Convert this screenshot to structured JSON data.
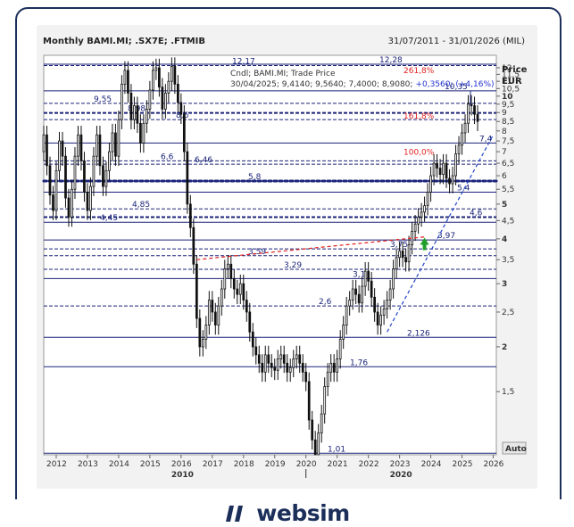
{
  "header": {
    "title": "Monthly BAMI.MI; .SX7E; .FTMIB",
    "date_range": "31/07/2011 - 31/01/2026 (MIL)"
  },
  "legend": {
    "line1": "Cndl; BAMI.MI; Trade Price",
    "line2_values": "30/04/2025; 9,4140; 9,5640; 7,4000; 8,9080;",
    "line2_change": "+0,3560; (+4,16%)"
  },
  "brand": {
    "name": "websim",
    "colors": {
      "navy": "#1c2f5a",
      "candle": "#111111",
      "level": "#1a2378",
      "fib": "#e02020",
      "trend": "#2244cc",
      "arrow": "#1f9e2a"
    }
  },
  "chart_data": {
    "type": "candlestick",
    "title": "Monthly BAMI.MI; .SX7E; .FTMIB",
    "ylabel_line1": "Price",
    "ylabel_line2": "EUR",
    "y_scale": "log",
    "ylim": [
      1.0,
      13.0
    ],
    "xlim": [
      2011.6,
      2026.1
    ],
    "grid": false,
    "y_ticks": [
      "1,5",
      "2",
      "2,5",
      "3",
      "3,5",
      "4",
      "4,5",
      "5",
      "5,5",
      "6",
      "6,5",
      "7",
      "7,5",
      "8",
      "8,5",
      "9",
      "9,5",
      "10",
      "10,5",
      "11",
      "11,5",
      "12"
    ],
    "y_ticks_bold": [
      "2",
      "3",
      "4",
      "5",
      "10"
    ],
    "x_ticks": [
      "2012",
      "2013",
      "2014",
      "2015",
      "2016",
      "2017",
      "2018",
      "2019",
      "2020",
      "2021",
      "2022",
      "2023",
      "2024",
      "2025",
      "2026"
    ],
    "x_secondary_labels": [
      {
        "year": 2016,
        "label": "2010"
      },
      {
        "year": 2023,
        "label": "2020"
      }
    ],
    "auto_label": "Auto",
    "levels": [
      {
        "value": 12.28,
        "label": "12,28",
        "style": "solid"
      },
      {
        "value": 12.17,
        "label": "12,17",
        "style": "dashed"
      },
      {
        "value": 10.35,
        "label": "10,35",
        "style": "solid"
      },
      {
        "value": 9.55,
        "label": "9,55",
        "style": "dashed"
      },
      {
        "value": 8.98,
        "label": "8,98",
        "style": "dashed-bold"
      },
      {
        "value": 8.6,
        "label": "8,6",
        "style": "dashed"
      },
      {
        "value": 7.4,
        "label": "7,4",
        "style": "solid"
      },
      {
        "value": 6.6,
        "label": "6,6",
        "style": "dashed"
      },
      {
        "value": 6.46,
        "label": "6,46",
        "style": "dashed"
      },
      {
        "value": 5.8,
        "label": "5,8",
        "style": "dotted-bold"
      },
      {
        "value": 5.4,
        "label": "5,4",
        "style": "solid"
      },
      {
        "value": 4.85,
        "label": "4,85",
        "style": "dashed"
      },
      {
        "value": 4.6,
        "label": "4,6",
        "style": "dashed-bold"
      },
      {
        "value": 4.45,
        "label": "4,45",
        "style": "solid"
      },
      {
        "value": 3.97,
        "label": "3,97",
        "style": "solid"
      },
      {
        "value": 3.75,
        "label": "3,75",
        "style": "dashed"
      },
      {
        "value": 3.59,
        "label": "3,59",
        "style": "dashed"
      },
      {
        "value": 3.29,
        "label": "3,29",
        "style": "dashed"
      },
      {
        "value": 3.1,
        "label": "3,1",
        "style": "solid"
      },
      {
        "value": 2.6,
        "label": "2,6",
        "style": "dashed"
      },
      {
        "value": 2.126,
        "label": "2,126",
        "style": "solid"
      },
      {
        "value": 1.76,
        "label": "1,76",
        "style": "solid"
      },
      {
        "value": 1.01,
        "label": "1,01",
        "style": "solid"
      }
    ],
    "fib_labels": [
      {
        "value": 11.4,
        "label": "261,8%"
      },
      {
        "value": 8.5,
        "label": "161,8%"
      },
      {
        "value": 6.75,
        "label": "100,0%"
      }
    ],
    "trendline": {
      "from": [
        2022.6,
        2.2
      ],
      "to": [
        2026.0,
        7.8
      ]
    },
    "red_line": {
      "from": [
        2016.5,
        3.5
      ],
      "to": [
        2023.8,
        4.05
      ]
    },
    "arrow": {
      "x": 2023.8,
      "y": 3.85
    },
    "series": [
      {
        "x": [
          2011.6,
          2011.7,
          2011.8,
          2011.9,
          2012.0,
          2012.1,
          2012.2,
          2012.3,
          2012.4,
          2012.5,
          2012.6,
          2012.7,
          2012.8,
          2012.9,
          2013.0,
          2013.1,
          2013.2,
          2013.3,
          2013.4,
          2013.5,
          2013.6,
          2013.7,
          2013.8,
          2013.9,
          2014.0,
          2014.1,
          2014.2,
          2014.3,
          2014.4,
          2014.5,
          2014.6,
          2014.7,
          2014.8,
          2014.9,
          2015.0,
          2015.1,
          2015.2,
          2015.3,
          2015.4,
          2015.5,
          2015.6,
          2015.7,
          2015.8,
          2015.9,
          2016.0,
          2016.1,
          2016.2,
          2016.3,
          2016.4,
          2016.5,
          2016.6,
          2016.7,
          2016.8,
          2016.9,
          2017.0,
          2017.1,
          2017.2,
          2017.3,
          2017.4,
          2017.5,
          2017.6,
          2017.7,
          2017.8,
          2017.9,
          2018.0,
          2018.1,
          2018.2,
          2018.3,
          2018.4,
          2018.5,
          2018.6,
          2018.7,
          2018.8,
          2018.9,
          2019.0,
          2019.1,
          2019.2,
          2019.3,
          2019.4,
          2019.5,
          2019.6,
          2019.7,
          2019.8,
          2019.9,
          2020.0,
          2020.1,
          2020.2,
          2020.3,
          2020.4,
          2020.5,
          2020.6,
          2020.7,
          2020.8,
          2020.9,
          2021.0,
          2021.1,
          2021.2,
          2021.3,
          2021.4,
          2021.5,
          2021.6,
          2021.7,
          2021.8,
          2021.9,
          2022.0,
          2022.1,
          2022.2,
          2022.3,
          2022.4,
          2022.5,
          2022.6,
          2022.7,
          2022.8,
          2022.9,
          2023.0,
          2023.1,
          2023.2,
          2023.3,
          2023.4,
          2023.5,
          2023.6,
          2023.7,
          2023.8,
          2023.9,
          2024.0,
          2024.1,
          2024.2,
          2024.3,
          2024.4,
          2024.5,
          2024.6,
          2024.7,
          2024.8,
          2024.9,
          2025.0,
          2025.1,
          2025.2,
          2025.3,
          2025.4,
          2025.5
        ],
        "close": [
          7.8,
          6.4,
          5.3,
          4.8,
          6.2,
          7.5,
          6.8,
          5.2,
          4.6,
          5.5,
          6.8,
          7.8,
          6.6,
          5.4,
          4.8,
          5.6,
          6.8,
          7.8,
          6.4,
          5.6,
          6.2,
          7.0,
          7.9,
          6.8,
          8.6,
          10.8,
          11.8,
          10.2,
          8.6,
          9.4,
          8.4,
          7.4,
          8.4,
          9.2,
          10.4,
          11.8,
          12.0,
          10.6,
          9.2,
          10.2,
          11.0,
          12.1,
          10.8,
          9.6,
          8.9,
          7.0,
          5.0,
          4.3,
          3.4,
          2.4,
          2.0,
          2.1,
          2.3,
          2.7,
          2.5,
          2.3,
          2.6,
          2.9,
          3.3,
          3.4,
          3.1,
          2.9,
          2.8,
          3.0,
          2.7,
          2.5,
          2.2,
          2.0,
          1.9,
          1.8,
          1.7,
          1.9,
          1.8,
          1.75,
          1.72,
          1.85,
          1.9,
          1.8,
          1.7,
          1.75,
          1.85,
          1.9,
          1.8,
          1.7,
          1.6,
          1.25,
          1.1,
          1.0,
          1.15,
          1.3,
          1.55,
          1.7,
          1.8,
          1.7,
          1.85,
          2.1,
          2.3,
          2.6,
          2.7,
          2.9,
          2.8,
          2.65,
          2.95,
          3.25,
          3.05,
          2.75,
          2.5,
          2.3,
          2.45,
          2.55,
          2.7,
          2.9,
          3.3,
          3.55,
          3.7,
          3.55,
          3.45,
          3.85,
          4.2,
          4.4,
          4.6,
          4.75,
          4.95,
          5.4,
          6.0,
          6.5,
          6.3,
          6.05,
          6.5,
          5.9,
          5.7,
          6.0,
          6.9,
          7.3,
          7.9,
          8.4,
          9.5,
          9.4,
          8.9,
          8.5
        ],
        "open": [
          7.0,
          7.8,
          6.4,
          5.3,
          4.8,
          6.2,
          7.5,
          6.8,
          5.2,
          4.6,
          5.5,
          6.8,
          7.8,
          6.6,
          5.4,
          4.8,
          5.6,
          6.8,
          7.8,
          6.4,
          5.6,
          6.2,
          7.0,
          7.9,
          6.8,
          8.6,
          10.8,
          11.8,
          10.2,
          8.6,
          9.4,
          8.4,
          7.4,
          8.4,
          9.2,
          10.4,
          11.8,
          12.0,
          10.6,
          9.2,
          10.2,
          11.0,
          12.1,
          10.8,
          9.6,
          8.9,
          7.0,
          5.0,
          4.3,
          3.4,
          2.4,
          2.0,
          2.1,
          2.3,
          2.7,
          2.5,
          2.3,
          2.6,
          2.9,
          3.3,
          3.4,
          3.1,
          2.9,
          2.8,
          3.0,
          2.7,
          2.5,
          2.2,
          2.0,
          1.9,
          1.8,
          1.7,
          1.9,
          1.8,
          1.75,
          1.72,
          1.85,
          1.9,
          1.8,
          1.7,
          1.75,
          1.85,
          1.9,
          1.8,
          1.7,
          1.6,
          1.25,
          1.1,
          1.0,
          1.15,
          1.3,
          1.55,
          1.7,
          1.8,
          1.7,
          1.85,
          2.1,
          2.3,
          2.6,
          2.7,
          2.9,
          2.8,
          2.65,
          2.95,
          3.25,
          3.05,
          2.75,
          2.5,
          2.3,
          2.45,
          2.55,
          2.7,
          2.9,
          3.3,
          3.55,
          3.7,
          3.55,
          3.45,
          3.85,
          4.2,
          4.4,
          4.6,
          4.75,
          4.95,
          5.4,
          6.0,
          6.5,
          6.3,
          6.05,
          6.5,
          5.9,
          5.7,
          6.0,
          6.9,
          7.3,
          7.9,
          8.4,
          9.5,
          9.4,
          8.9
        ]
      }
    ]
  }
}
